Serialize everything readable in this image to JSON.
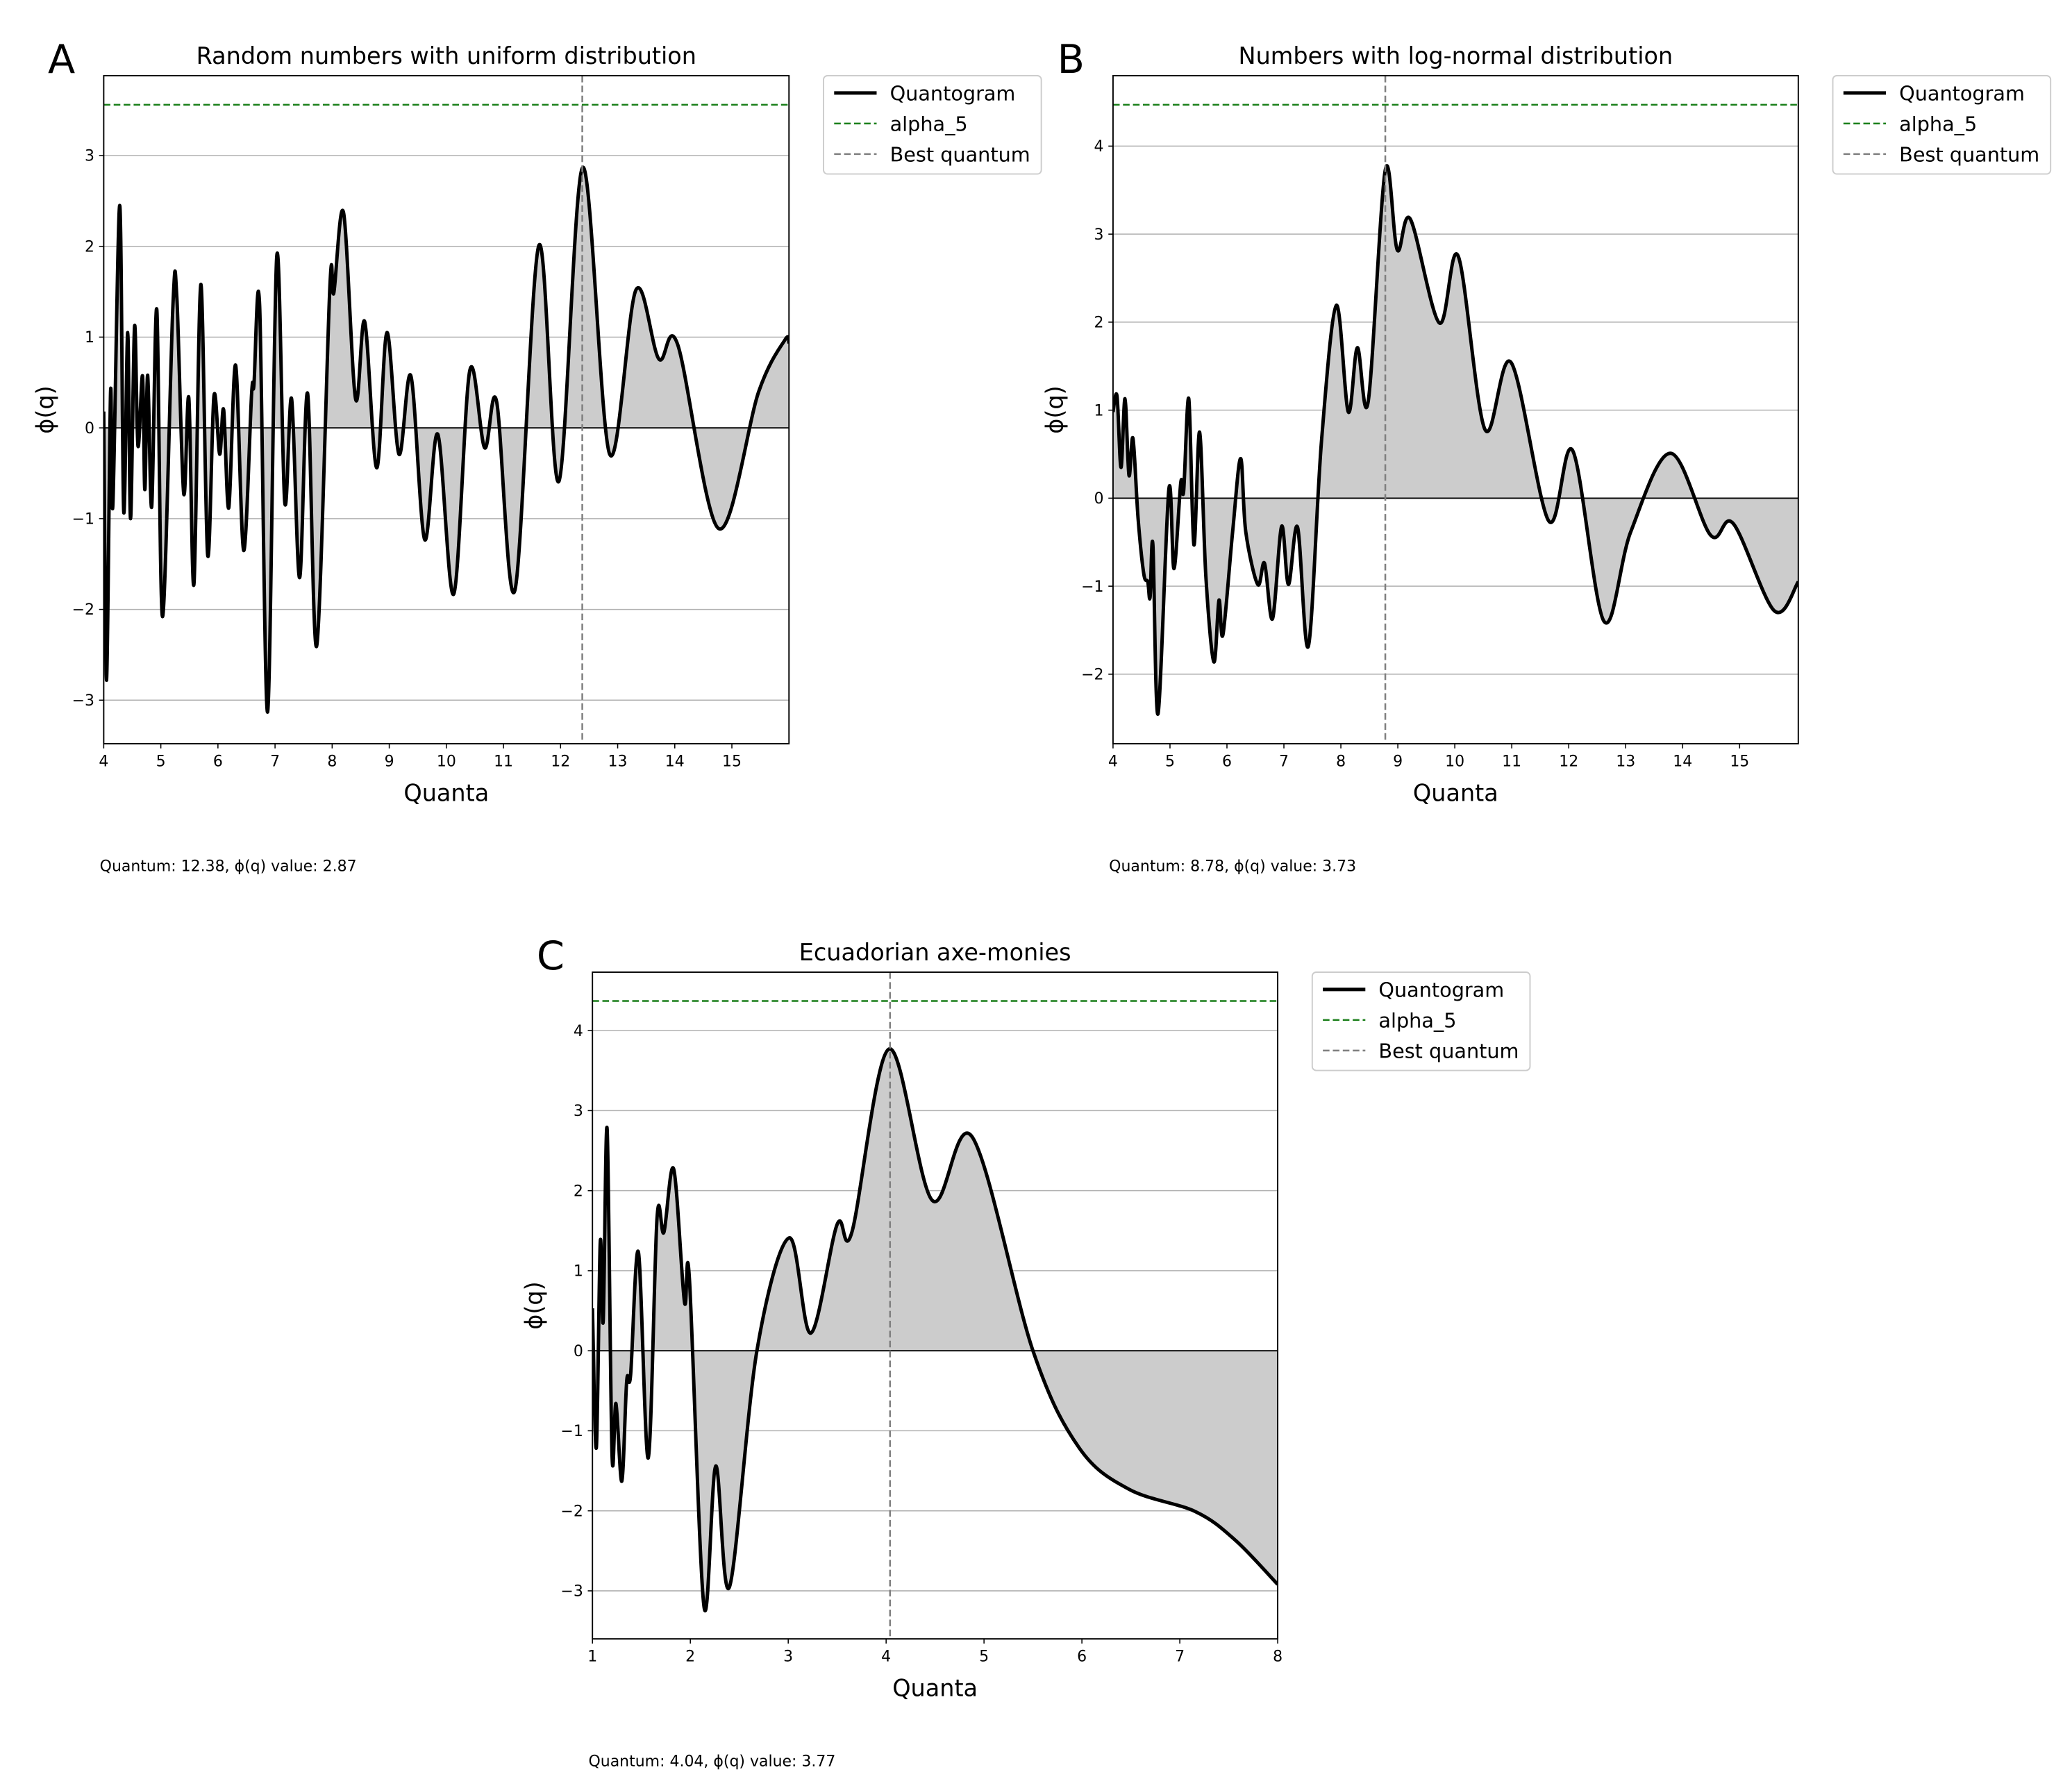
{
  "chart_data": [
    {
      "type": "line",
      "panel_label": "A",
      "title": "Random numbers with uniform distribution",
      "xlabel": "Quanta",
      "ylabel": "ϕ(q)",
      "xlim": [
        4,
        16
      ],
      "ylim": [
        -3.48,
        3.88
      ],
      "xticks": [
        4,
        5,
        6,
        7,
        8,
        9,
        10,
        11,
        12,
        13,
        14,
        15
      ],
      "yticks": [
        {
          "value": -3,
          "label": "−3"
        },
        {
          "value": -2,
          "label": "−2"
        },
        {
          "value": -1,
          "label": "−1"
        },
        0,
        1,
        2,
        3
      ],
      "grid": true,
      "fill_color": "#cccccc",
      "x": [
        4.0,
        4.05,
        4.12,
        4.16,
        4.28,
        4.35,
        4.42,
        4.47,
        4.54,
        4.6,
        4.68,
        4.72,
        4.77,
        4.84,
        4.93,
        5.03,
        5.21,
        5.28,
        5.4,
        5.49,
        5.58,
        5.7,
        5.82,
        5.93,
        6.03,
        6.1,
        6.19,
        6.31,
        6.45,
        6.59,
        6.63,
        6.73,
        6.87,
        7.03,
        7.17,
        7.29,
        7.43,
        7.57,
        7.73,
        7.96,
        8.03,
        8.2,
        8.41,
        8.57,
        8.78,
        8.96,
        9.17,
        9.38,
        9.62,
        9.85,
        10.13,
        10.41,
        10.67,
        10.88,
        11.2,
        11.62,
        11.97,
        12.39,
        12.86,
        13.32,
        13.72,
        14.05,
        14.77,
        15.47,
        15.93,
        16.0
      ],
      "series": [
        {
          "name": "Quantogram",
          "color": "#000000",
          "values": [
            0.18,
            -2.78,
            0.4,
            -0.85,
            2.45,
            -0.92,
            1.05,
            -1.0,
            1.12,
            -0.2,
            0.57,
            -0.68,
            0.58,
            -0.87,
            1.3,
            -2.08,
            1.32,
            1.44,
            -0.72,
            0.33,
            -1.72,
            1.58,
            -1.4,
            0.35,
            -0.29,
            0.2,
            -0.88,
            0.69,
            -1.35,
            0.38,
            0.47,
            1.35,
            -3.13,
            1.89,
            -0.82,
            0.32,
            -1.65,
            0.38,
            -2.4,
            1.55,
            1.49,
            2.37,
            0.32,
            1.17,
            -0.44,
            1.05,
            -0.29,
            0.57,
            -1.23,
            -0.07,
            -1.83,
            0.63,
            -0.22,
            0.29,
            -1.79,
            2.01,
            -0.59,
            2.87,
            -0.29,
            1.52,
            0.76,
            0.92,
            -1.11,
            0.4,
            0.97,
            0.94
          ]
        }
      ],
      "lines": [
        {
          "name": "alpha_5",
          "orientation": "horizontal",
          "value": 3.56,
          "color": "#1a7f1a"
        },
        {
          "name": "Best quantum",
          "orientation": "vertical",
          "value": 12.38,
          "color": "#7f7f7f"
        }
      ],
      "annotation": "Quantum: 12.38, ϕ(q) value: 2.87"
    },
    {
      "type": "line",
      "panel_label": "B",
      "title": "Numbers with log-normal distribution",
      "xlabel": "Quanta",
      "ylabel": "ϕ(q)",
      "xlim": [
        4,
        16.03
      ],
      "ylim": [
        -2.79,
        4.8
      ],
      "xticks": [
        4,
        5,
        6,
        7,
        8,
        9,
        10,
        11,
        12,
        13,
        14,
        15
      ],
      "yticks": [
        {
          "value": -2,
          "label": "−2"
        },
        {
          "value": -1,
          "label": "−1"
        },
        0,
        1,
        2,
        3,
        4
      ],
      "grid": true,
      "fill_color": "#cccccc",
      "x": [
        4.0,
        4.07,
        4.14,
        4.21,
        4.28,
        4.35,
        4.44,
        4.54,
        4.61,
        4.65,
        4.7,
        4.79,
        4.98,
        5.07,
        5.19,
        5.24,
        5.33,
        5.42,
        5.52,
        5.63,
        5.77,
        5.86,
        5.93,
        6.1,
        6.24,
        6.33,
        6.54,
        6.66,
        6.8,
        6.96,
        7.08,
        7.24,
        7.43,
        7.66,
        7.92,
        8.13,
        8.29,
        8.48,
        8.78,
        8.99,
        9.22,
        9.73,
        10.06,
        10.53,
        10.99,
        11.65,
        12.07,
        12.62,
        13.09,
        13.79,
        14.49,
        14.89,
        15.61,
        16.03
      ],
      "series": [
        {
          "name": "Quantogram",
          "color": "#000000",
          "values": [
            0.98,
            1.16,
            0.35,
            1.13,
            0.26,
            0.68,
            -0.23,
            -0.86,
            -0.95,
            -1.13,
            -0.53,
            -2.45,
            0.1,
            -0.8,
            0.18,
            0.08,
            1.13,
            -0.53,
            0.75,
            -0.89,
            -1.86,
            -1.16,
            -1.55,
            -0.38,
            0.45,
            -0.38,
            -0.98,
            -0.74,
            -1.37,
            -0.32,
            -0.98,
            -0.33,
            -1.68,
            0.65,
            2.19,
            0.98,
            1.71,
            1.1,
            3.73,
            2.82,
            3.17,
            1.99,
            2.75,
            0.78,
            1.54,
            -0.26,
            0.54,
            -1.4,
            -0.38,
            0.51,
            -0.42,
            -0.29,
            -1.28,
            -0.95
          ]
        }
      ],
      "lines": [
        {
          "name": "alpha_5",
          "orientation": "horizontal",
          "value": 4.47,
          "color": "#1a7f1a"
        },
        {
          "name": "Best quantum",
          "orientation": "vertical",
          "value": 8.78,
          "color": "#7f7f7f"
        }
      ],
      "annotation": "Quantum: 8.78, ϕ(q) value: 3.73"
    },
    {
      "type": "line",
      "panel_label": "C",
      "title": "Ecuadorian axe-monies",
      "xlabel": "Quanta",
      "ylabel": "ϕ(q)",
      "xlim": [
        1,
        8
      ],
      "ylim": [
        -3.6,
        4.73
      ],
      "xticks": [
        1,
        2,
        3,
        4,
        5,
        6,
        7,
        8
      ],
      "yticks": [
        {
          "value": -3,
          "label": "−3"
        },
        {
          "value": -2,
          "label": "−2"
        },
        {
          "value": -1,
          "label": "−1"
        },
        0,
        1,
        2,
        3,
        4
      ],
      "grid": true,
      "fill_color": "#cccccc",
      "x": [
        1.0,
        1.04,
        1.08,
        1.11,
        1.15,
        1.2,
        1.24,
        1.3,
        1.35,
        1.39,
        1.47,
        1.57,
        1.66,
        1.73,
        1.83,
        1.94,
        1.99,
        2.14,
        2.26,
        2.4,
        2.68,
        3.01,
        3.23,
        3.5,
        3.65,
        4.03,
        4.47,
        4.88,
        5.5,
        5.97,
        6.48,
        7.16,
        7.57,
        8.0
      ],
      "series": [
        {
          "name": "Quantogram",
          "color": "#000000",
          "values": [
            0.53,
            -1.21,
            1.36,
            0.37,
            2.77,
            -1.29,
            -0.66,
            -1.63,
            -0.38,
            -0.3,
            1.23,
            -1.34,
            1.66,
            1.48,
            2.27,
            0.61,
            0.91,
            -3.2,
            -1.44,
            -2.95,
            0,
            1.41,
            0.22,
            1.58,
            1.48,
            3.77,
            1.88,
            2.67,
            0,
            -1.21,
            -1.73,
            -2.01,
            -2.37,
            -2.92
          ]
        }
      ],
      "lines": [
        {
          "name": "alpha_5",
          "orientation": "horizontal",
          "value": 4.37,
          "color": "#1a7f1a"
        },
        {
          "name": "Best quantum",
          "orientation": "vertical",
          "value": 4.04,
          "color": "#7f7f7f"
        }
      ],
      "annotation": "Quantum: 4.04, ϕ(q) value: 3.77"
    }
  ]
}
